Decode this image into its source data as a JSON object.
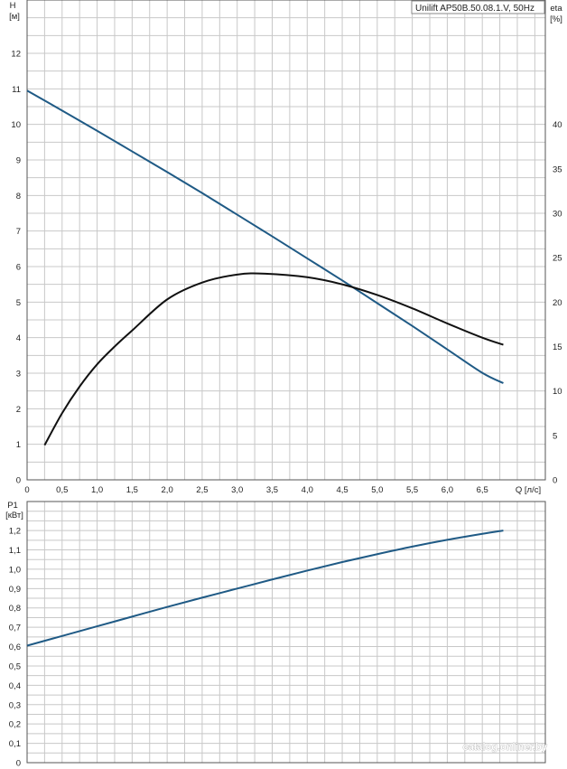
{
  "legend_label": "Unilift AP50B.50.08.1.V, 50Hz",
  "watermark": "catalog.onliner.by",
  "colors": {
    "head_curve": "#1f5a85",
    "eta_curve": "#111111",
    "power_curve": "#1f5a85",
    "grid": "#c8c8c8",
    "frame": "#555555"
  },
  "chart_data": [
    {
      "type": "line",
      "title": "",
      "xlabel": "Q [л/с]",
      "ylabel": "H [м]",
      "y2label": "eta [%]",
      "xlim": [
        0,
        7.4
      ],
      "ylim": [
        0,
        13.5
      ],
      "y2lim": [
        0,
        54
      ],
      "xticks": [
        "0",
        "0,5",
        "1,0",
        "1,5",
        "2,0",
        "2,5",
        "3,0",
        "3,5",
        "4,0",
        "4,5",
        "5,0",
        "5,5",
        "6,0",
        "6,5"
      ],
      "yticks": [
        "0",
        "1",
        "2",
        "3",
        "4",
        "5",
        "6",
        "7",
        "8",
        "9",
        "10",
        "11",
        "12"
      ],
      "y2ticks": [
        "0",
        "5",
        "10",
        "15",
        "20",
        "25",
        "30",
        "35",
        "40"
      ],
      "grid": true,
      "legend": "top-right",
      "series": [
        {
          "name": "H",
          "axis": "left",
          "x": [
            0,
            0.5,
            1.0,
            1.5,
            2.0,
            2.5,
            3.0,
            3.5,
            4.0,
            4.5,
            5.0,
            5.5,
            6.0,
            6.5,
            6.8
          ],
          "y": [
            10.95,
            10.39,
            9.82,
            9.24,
            8.66,
            8.07,
            7.46,
            6.85,
            6.23,
            5.61,
            4.97,
            4.33,
            3.67,
            3.01,
            2.72
          ]
        },
        {
          "name": "eta",
          "axis": "right",
          "x": [
            0.25,
            0.5,
            0.75,
            1.0,
            1.25,
            1.5,
            2.0,
            2.5,
            3.0,
            3.4,
            4.0,
            4.5,
            5.0,
            5.5,
            6.0,
            6.5,
            6.8
          ],
          "y": [
            3.9,
            7.5,
            10.5,
            13.0,
            15.0,
            16.8,
            20.3,
            22.2,
            23.1,
            23.2,
            22.8,
            22.0,
            20.8,
            19.3,
            17.6,
            16.0,
            15.2
          ]
        }
      ]
    },
    {
      "type": "line",
      "title": "",
      "xlabel": "",
      "ylabel": "P1 [кВт]",
      "xlim": [
        0,
        7.4
      ],
      "ylim": [
        0,
        1.35
      ],
      "yticks": [
        "0",
        "0,1",
        "0,2",
        "0,3",
        "0,4",
        "0,5",
        "0,6",
        "0,7",
        "0,8",
        "0,9",
        "1,0",
        "1,1",
        "1,2"
      ],
      "grid": true,
      "series": [
        {
          "name": "P1",
          "x": [
            0,
            0.5,
            1.0,
            1.5,
            2.0,
            2.5,
            3.0,
            3.5,
            4.0,
            4.5,
            5.0,
            5.5,
            6.0,
            6.5,
            6.8
          ],
          "y": [
            0.605,
            0.655,
            0.705,
            0.755,
            0.805,
            0.853,
            0.9,
            0.947,
            0.993,
            1.037,
            1.078,
            1.117,
            1.152,
            1.183,
            1.2
          ]
        }
      ]
    }
  ]
}
